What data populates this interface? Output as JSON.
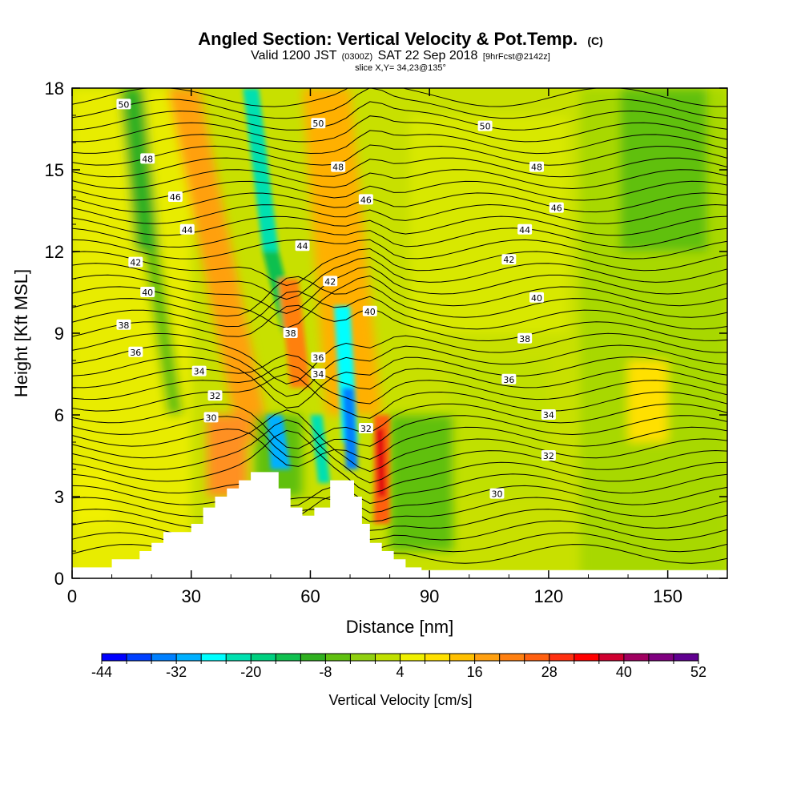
{
  "title": {
    "main": "Angled Section: Vertical Velocity & Pot.Temp.",
    "main_unit": "(C)",
    "valid_prefix": "Valid 1200 JST",
    "valid_zulu": "(0300Z)",
    "valid_date": "SAT 22 Sep 2018",
    "forecast": "[9hrFcst@2142z]",
    "slice": "slice X,Y= 34,23@135°"
  },
  "chart_data": {
    "type": "heatmap",
    "xlabel": "Distance [nm]",
    "ylabel": "Height [Kft MSL]",
    "xlim": [
      0,
      165
    ],
    "ylim": [
      0,
      18
    ],
    "xticks": [
      "0",
      "30",
      "60",
      "90",
      "120",
      "150"
    ],
    "yticks": [
      "0",
      "3",
      "6",
      "9",
      "12",
      "15",
      "18"
    ],
    "fill_field": "Vertical Velocity",
    "fill_units": "cm/s",
    "colorbar": {
      "title": "Vertical Velocity [cm/s]",
      "ticks": [
        "-44",
        "-32",
        "-20",
        "-8",
        "4",
        "16",
        "28",
        "40",
        "52"
      ],
      "min": -44,
      "max": 52,
      "step": 4,
      "colors": [
        "#0000ff",
        "#0040ff",
        "#0080ff",
        "#00b0ff",
        "#00ffff",
        "#00e0b0",
        "#00d080",
        "#10c050",
        "#30b020",
        "#60c010",
        "#90d010",
        "#c0e000",
        "#f0f000",
        "#ffe000",
        "#ffc000",
        "#ffa010",
        "#ff8010",
        "#ff6010",
        "#ff3010",
        "#ff0000",
        "#d00030",
        "#a00060",
        "#800080",
        "#600090"
      ]
    },
    "terrain": [
      [
        0,
        0.4
      ],
      [
        10,
        0.4
      ],
      [
        10,
        0.7
      ],
      [
        17,
        0.7
      ],
      [
        17,
        1.0
      ],
      [
        20,
        1.0
      ],
      [
        20,
        1.3
      ],
      [
        23,
        1.3
      ],
      [
        23,
        1.7
      ],
      [
        30,
        1.7
      ],
      [
        30,
        2.0
      ],
      [
        33,
        2.0
      ],
      [
        33,
        2.6
      ],
      [
        36,
        2.6
      ],
      [
        36,
        3.0
      ],
      [
        39,
        3.0
      ],
      [
        39,
        3.3
      ],
      [
        42,
        3.3
      ],
      [
        42,
        3.6
      ],
      [
        45,
        3.6
      ],
      [
        45,
        3.9
      ],
      [
        52,
        3.9
      ],
      [
        52,
        3.3
      ],
      [
        55,
        3.3
      ],
      [
        55,
        2.6
      ],
      [
        58,
        2.6
      ],
      [
        58,
        2.3
      ],
      [
        61,
        2.3
      ],
      [
        61,
        2.6
      ],
      [
        65,
        2.6
      ],
      [
        65,
        3.6
      ],
      [
        71,
        3.6
      ],
      [
        71,
        3.0
      ],
      [
        73,
        3.0
      ],
      [
        73,
        2.0
      ],
      [
        75,
        2.0
      ],
      [
        75,
        1.3
      ],
      [
        78,
        1.3
      ],
      [
        78,
        1.0
      ],
      [
        81,
        1.0
      ],
      [
        81,
        0.7
      ],
      [
        84,
        0.7
      ],
      [
        84,
        0.4
      ],
      [
        88,
        0.4
      ],
      [
        88,
        0.3
      ],
      [
        165,
        0.3
      ]
    ],
    "isentrope_labels": [
      {
        "text": "50",
        "x": 13,
        "y": 17.4
      },
      {
        "text": "50",
        "x": 62,
        "y": 16.7
      },
      {
        "text": "50",
        "x": 104,
        "y": 16.6
      },
      {
        "text": "48",
        "x": 19,
        "y": 15.4
      },
      {
        "text": "48",
        "x": 67,
        "y": 15.1
      },
      {
        "text": "48",
        "x": 117,
        "y": 15.1
      },
      {
        "text": "46",
        "x": 26,
        "y": 14.0
      },
      {
        "text": "46",
        "x": 74,
        "y": 13.9
      },
      {
        "text": "46",
        "x": 122,
        "y": 13.6
      },
      {
        "text": "44",
        "x": 29,
        "y": 12.8
      },
      {
        "text": "44",
        "x": 58,
        "y": 12.2
      },
      {
        "text": "44",
        "x": 114,
        "y": 12.8
      },
      {
        "text": "42",
        "x": 16,
        "y": 11.6
      },
      {
        "text": "42",
        "x": 65,
        "y": 10.9
      },
      {
        "text": "42",
        "x": 110,
        "y": 11.7
      },
      {
        "text": "40",
        "x": 19,
        "y": 10.5
      },
      {
        "text": "40",
        "x": 75,
        "y": 9.8
      },
      {
        "text": "40",
        "x": 117,
        "y": 10.3
      },
      {
        "text": "38",
        "x": 13,
        "y": 9.3
      },
      {
        "text": "38",
        "x": 55,
        "y": 9.0
      },
      {
        "text": "38",
        "x": 114,
        "y": 8.8
      },
      {
        "text": "36",
        "x": 16,
        "y": 8.3
      },
      {
        "text": "36",
        "x": 62,
        "y": 8.1
      },
      {
        "text": "36",
        "x": 110,
        "y": 7.3
      },
      {
        "text": "34",
        "x": 32,
        "y": 7.6
      },
      {
        "text": "34",
        "x": 62,
        "y": 7.5
      },
      {
        "text": "34",
        "x": 120,
        "y": 6.0
      },
      {
        "text": "32",
        "x": 36,
        "y": 6.7
      },
      {
        "text": "32",
        "x": 74,
        "y": 5.5
      },
      {
        "text": "32",
        "x": 120,
        "y": 4.5
      },
      {
        "text": "30",
        "x": 35,
        "y": 5.9
      },
      {
        "text": "30",
        "x": 107,
        "y": 3.1
      }
    ]
  }
}
